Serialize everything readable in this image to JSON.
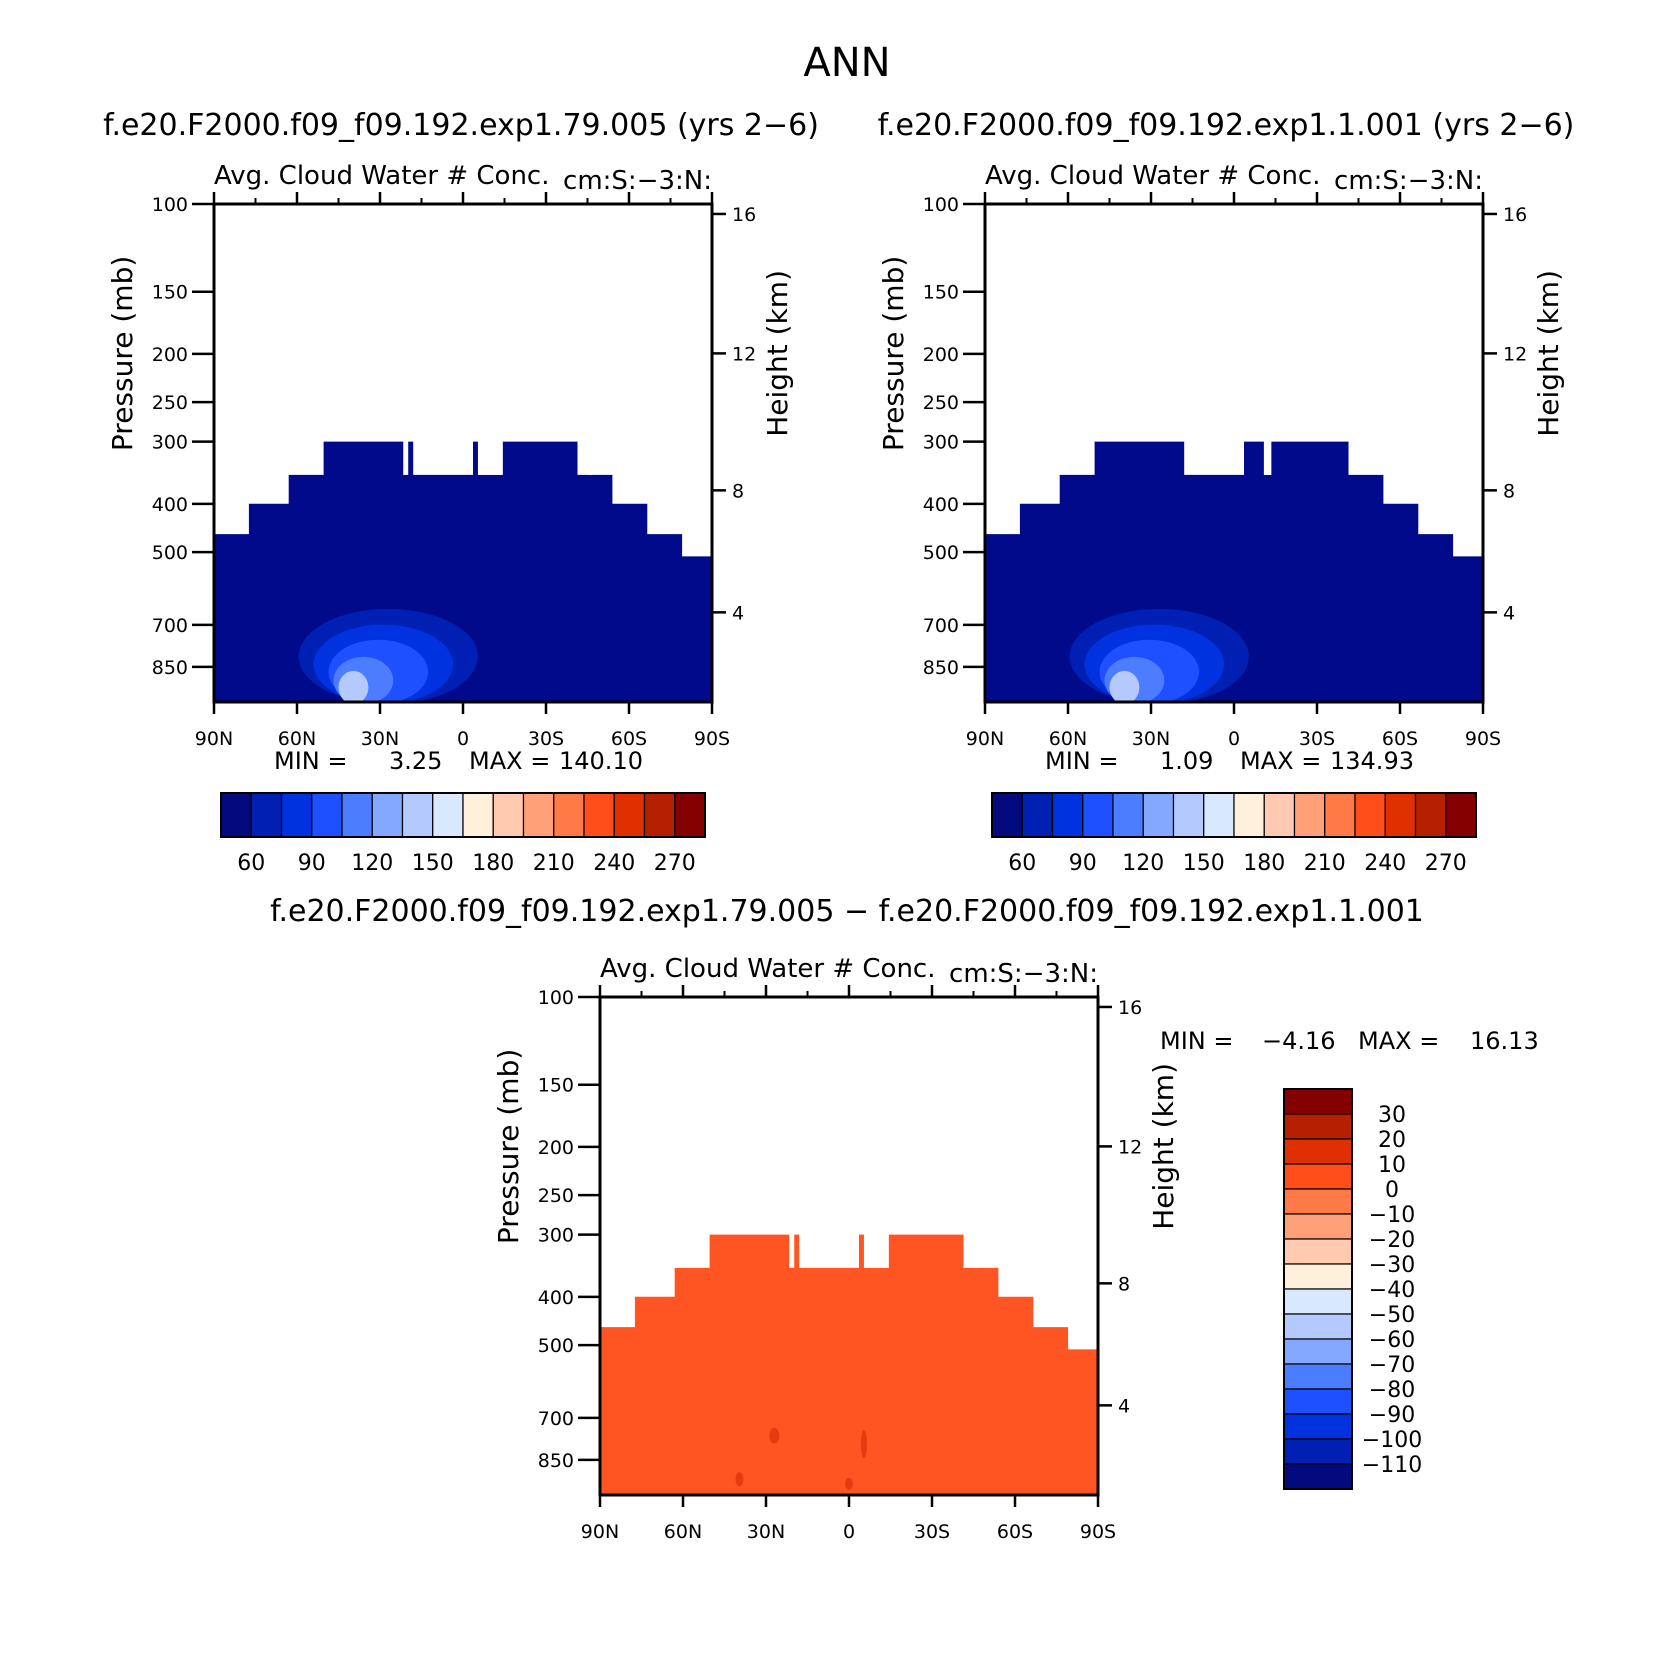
{
  "figure": {
    "title": "ANN",
    "diff_title": "f.e20.F2000.f09_f09.192.exp1.79.005 − f.e20.F2000.f09_f09.192.exp1.1.001"
  },
  "chart_data": [
    {
      "type": "contour",
      "case_title": "f.e20.F2000.f09_f09.192.exp1.79.005 (yrs 2−6)",
      "panel_title_left": "Avg. Cloud Water # Conc.",
      "panel_title_right": "cm:S:−3:N:",
      "ylabel": "Pressure (mb)",
      "y2label": "Height (km)",
      "y_ticks": [
        "100",
        "150",
        "200",
        "250",
        "300",
        "400",
        "500",
        "700",
        "850"
      ],
      "y2_ticks": [
        "16",
        "12",
        "8",
        "4"
      ],
      "x_ticks": [
        "90N",
        "60N",
        "30N",
        "0",
        "30S",
        "60S",
        "90S"
      ],
      "min_label": "MIN =",
      "min_value": "3.25",
      "max_label": "MAX =",
      "max_value": "140.10",
      "colorbar_labels": [
        "60",
        "90",
        "120",
        "150",
        "180",
        "210",
        "240",
        "270"
      ]
    },
    {
      "type": "contour",
      "case_title": "f.e20.F2000.f09_f09.192.exp1.1.001 (yrs 2−6)",
      "panel_title_left": "Avg. Cloud Water # Conc.",
      "panel_title_right": "cm:S:−3:N:",
      "ylabel": "Pressure (mb)",
      "y2label": "Height (km)",
      "y_ticks": [
        "100",
        "150",
        "200",
        "250",
        "300",
        "400",
        "500",
        "700",
        "850"
      ],
      "y2_ticks": [
        "16",
        "12",
        "8",
        "4"
      ],
      "x_ticks": [
        "90N",
        "60N",
        "30N",
        "0",
        "30S",
        "60S",
        "90S"
      ],
      "min_label": "MIN =",
      "min_value": "1.09",
      "max_label": "MAX =",
      "max_value": "134.93",
      "colorbar_labels": [
        "60",
        "90",
        "120",
        "150",
        "180",
        "210",
        "240",
        "270"
      ]
    },
    {
      "type": "contour",
      "panel_title_left": "Avg. Cloud Water # Conc.",
      "panel_title_right": "cm:S:−3:N:",
      "ylabel": "Pressure (mb)",
      "y2label": "Height (km)",
      "y_ticks": [
        "100",
        "150",
        "200",
        "250",
        "300",
        "400",
        "500",
        "700",
        "850"
      ],
      "y2_ticks": [
        "16",
        "12",
        "8",
        "4"
      ],
      "x_ticks": [
        "90N",
        "60N",
        "30N",
        "0",
        "30S",
        "60S",
        "90S"
      ],
      "min_label": "MIN =",
      "min_value": "−4.16",
      "max_label": "MAX =",
      "max_value": "16.13",
      "colorbar_labels": [
        "30",
        "20",
        "10",
        "0",
        "−10",
        "−20",
        "−30",
        "−40",
        "−50",
        "−60",
        "−70",
        "−80",
        "−90",
        "−100",
        "−110"
      ]
    }
  ],
  "colors": {
    "abs_fill": "#000a8a",
    "diff_fill": "#ff5522",
    "palette": [
      "#020a7e",
      "#0020b4",
      "#0032e0",
      "#1f50ff",
      "#4c7cff",
      "#84a8ff",
      "#b4caff",
      "#d8e8ff",
      "#fff0dc",
      "#ffcab0",
      "#ffa078",
      "#ff7a46",
      "#ff4e1a",
      "#e03000",
      "#b52000",
      "#850000"
    ]
  }
}
